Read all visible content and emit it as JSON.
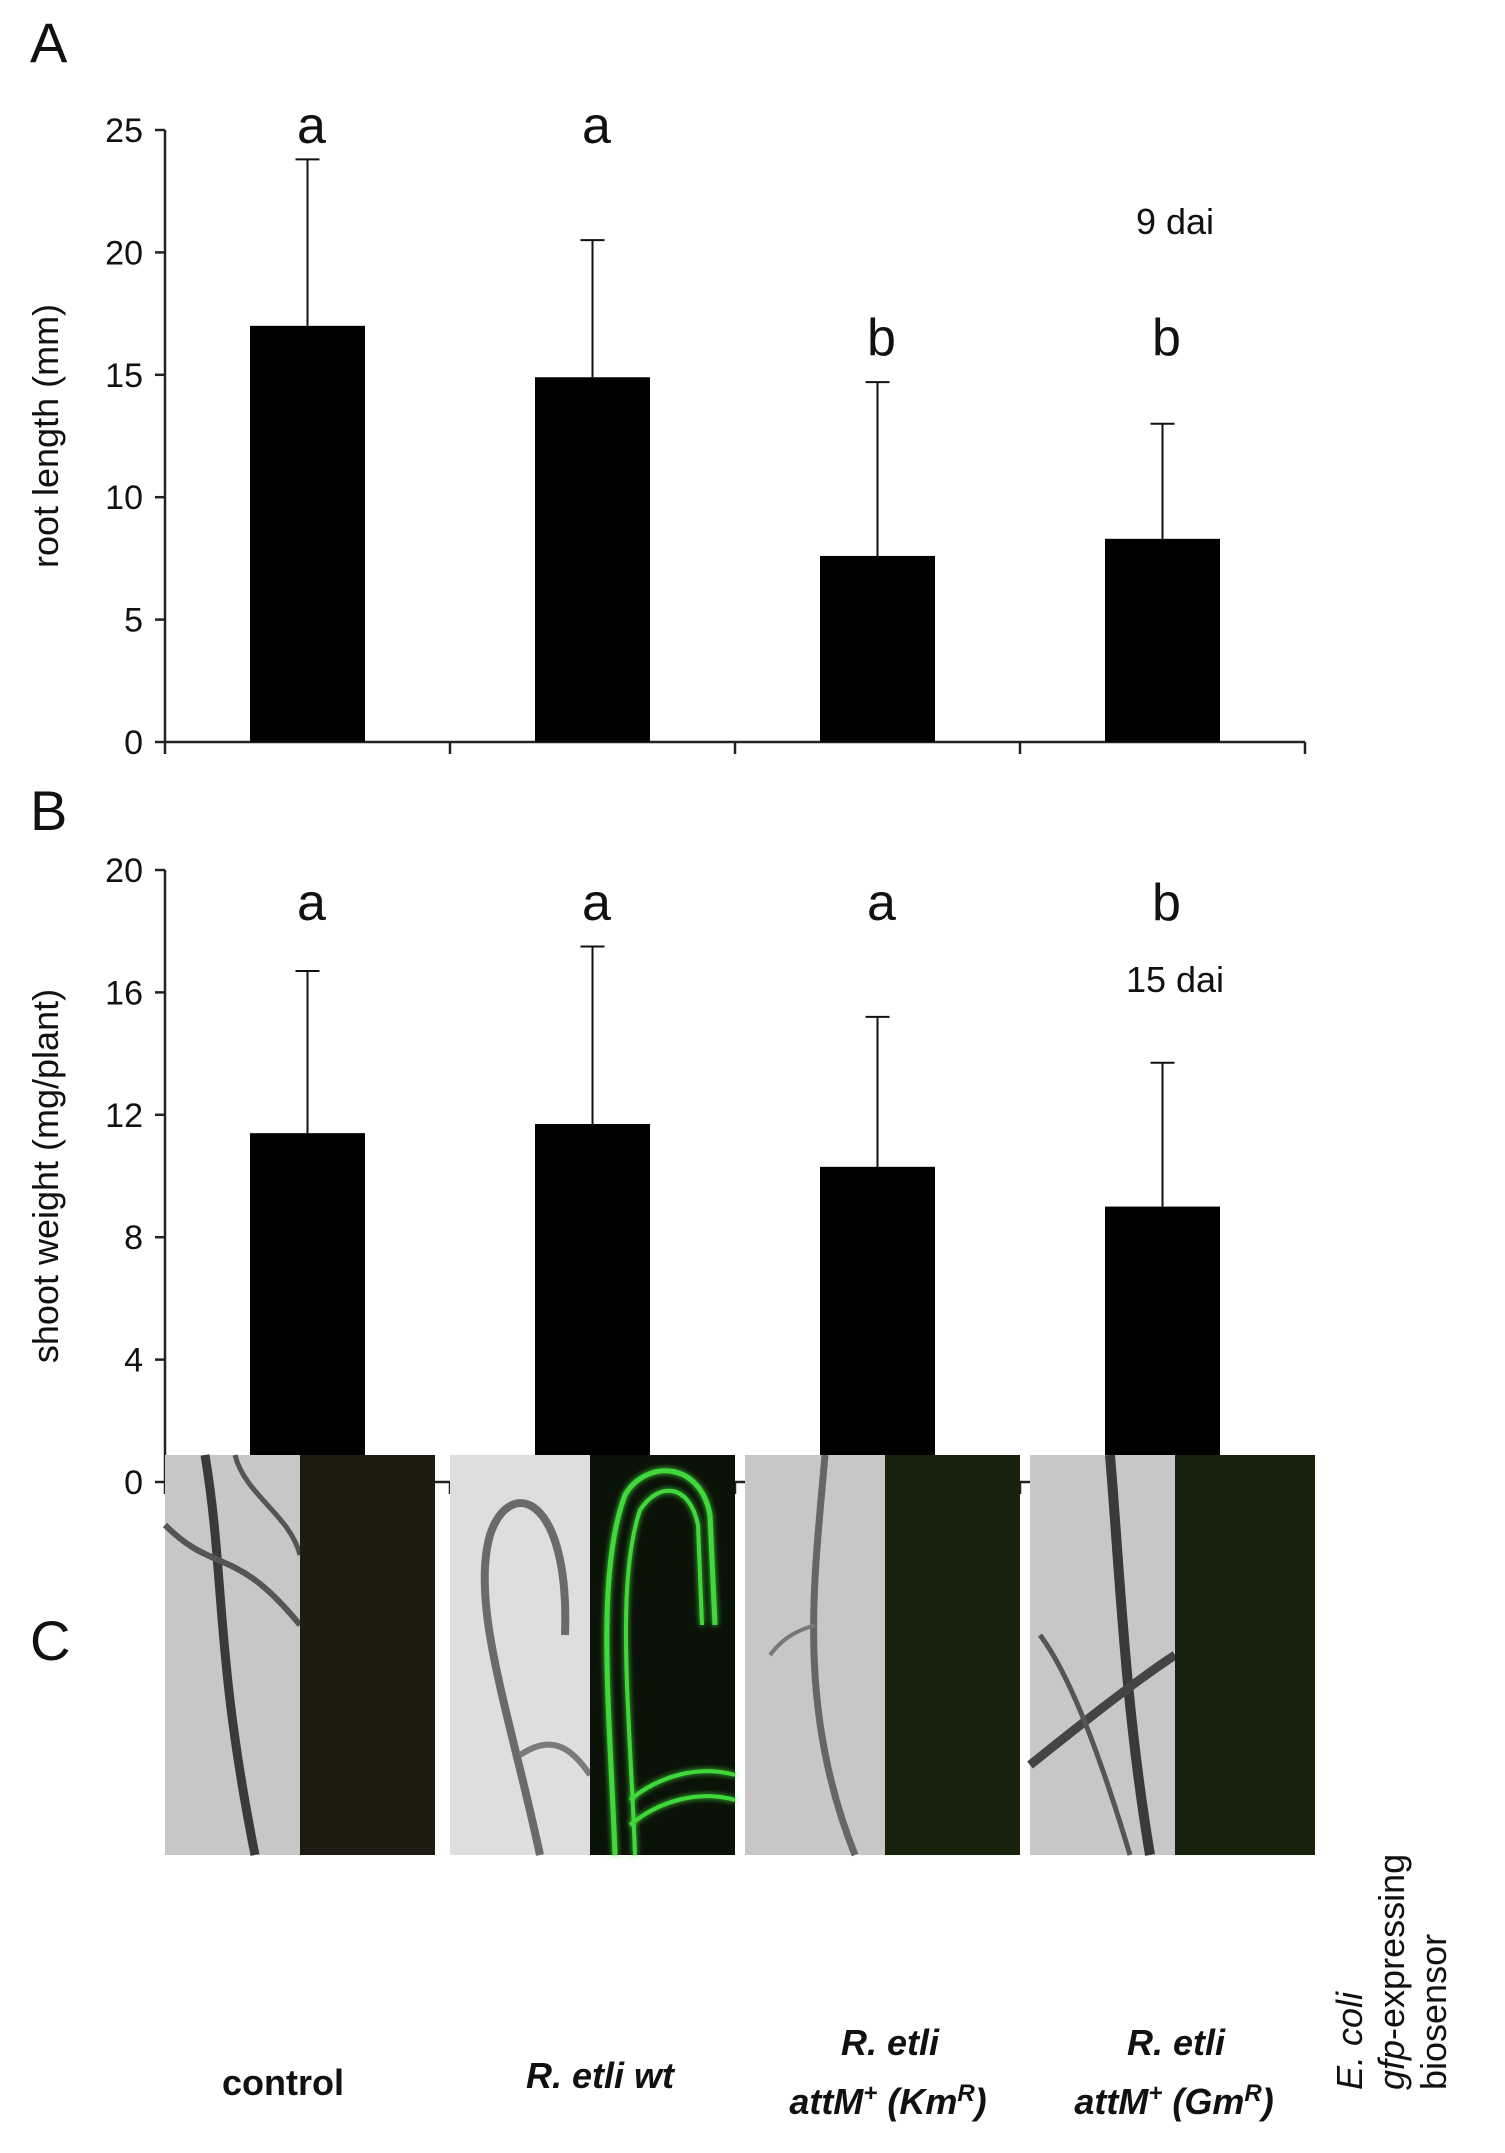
{
  "chart_data": [
    {
      "panel": "A",
      "type": "bar",
      "categories": [
        "control",
        "R. etli wt",
        "R. etli attM+ (KmR)",
        "R. etli attM+ (GmR)"
      ],
      "values": [
        17.0,
        14.9,
        7.6,
        8.3
      ],
      "errors": [
        6.8,
        5.6,
        7.1,
        4.7
      ],
      "significance": [
        "a",
        "a",
        "b",
        "b"
      ],
      "annotation": "9 dai",
      "xlabel": "",
      "ylabel": "root length (mm)",
      "ylim": [
        0,
        25
      ],
      "yticks": [
        0,
        5,
        10,
        15,
        20,
        25
      ],
      "grid": false,
      "bar_color": "#000000"
    },
    {
      "panel": "B",
      "type": "bar",
      "categories": [
        "control",
        "R. etli wt",
        "R. etli attM+ (KmR)",
        "R. etli attM+ (GmR)"
      ],
      "values": [
        11.4,
        11.7,
        10.3,
        9.0
      ],
      "errors": [
        5.3,
        5.8,
        4.9,
        4.7
      ],
      "significance": [
        "a",
        "a",
        "a",
        "b"
      ],
      "annotation": "15 dai",
      "xlabel": "",
      "ylabel": "shoot weight (mg/plant)",
      "ylim": [
        0,
        20
      ],
      "yticks": [
        0,
        4,
        8,
        12,
        16,
        20
      ],
      "grid": false,
      "bar_color": "#000000"
    }
  ],
  "panel_c": {
    "letter": "C",
    "side_label": {
      "line1_italic": "E. coli",
      "line2_italic": "gfp",
      "line2_rest": "-expressing",
      "line3": "biosensor"
    },
    "images": [
      {
        "name": "control",
        "fluorescence": "none",
        "dark_color": "#1e1c10"
      },
      {
        "name": "R. etli wt",
        "fluorescence": "green",
        "dark_color": "#0b1208"
      },
      {
        "name": "R. etli attM+ (KmR)",
        "fluorescence": "none",
        "dark_color": "#17220d"
      },
      {
        "name": "R. etli attM+ (GmR)",
        "fluorescence": "none",
        "dark_color": "#17220d"
      }
    ],
    "glow_color": "#3fd83a"
  },
  "labels": {
    "control": "control",
    "wt_prefix": "R. etli",
    "wt_suffix": "wt",
    "km_line1": "R. etli",
    "km_gene": "attM",
    "km_plus": "+",
    "km_open": " (Km",
    "km_sup": "R",
    "km_close": ")",
    "gm_line1": "R. etli",
    "gm_gene": "attM",
    "gm_plus": "+",
    "gm_open": " (Gm",
    "gm_sup": "R",
    "gm_close": ")"
  }
}
